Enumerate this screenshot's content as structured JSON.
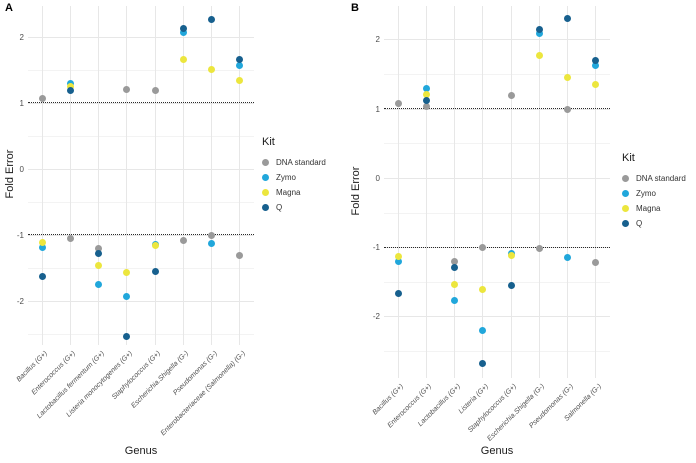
{
  "legend": {
    "title": "Kit",
    "items": [
      {
        "label": "DNA standard",
        "color": "#9a9a9a"
      },
      {
        "label": "Zymo",
        "color": "#21a7db"
      },
      {
        "label": "Magna",
        "color": "#ece63e"
      },
      {
        "label": "Q",
        "color": "#17608e"
      }
    ]
  },
  "chart_data": [
    {
      "type": "scatter",
      "title": "A",
      "xlabel": "Genus",
      "ylabel": "Fold Error",
      "y_ticks": [
        2,
        1,
        0,
        -1,
        -2
      ],
      "ref_lines": [
        1,
        -1
      ],
      "ylim": [
        -2.65,
        2.45
      ],
      "grid": "major-and-minor",
      "legend_position": "right",
      "categories": [
        "Bacillus (G+)",
        "Enterococcus (G+)",
        "Lactobacillus fermentum (G+)",
        "Listeria monocytogenes (G+)",
        "Staphylococcus (G+)",
        "Escherichia.Shigella (G-)",
        "Pseudomonas (G-)",
        "Enterobacteriaceae (Salmonella) (G-)"
      ],
      "series": [
        {
          "name": "DNA standard",
          "color": "#9a9a9a",
          "values": [
            1.08,
            -1.05,
            -1.2,
            1.21,
            1.19,
            -1.08,
            -1.0,
            -1.3
          ]
        },
        {
          "name": "Zymo",
          "color": "#21a7db",
          "values": [
            -1.18,
            1.3,
            -1.74,
            -1.93,
            -1.13,
            2.07,
            -1.12,
            1.58
          ]
        },
        {
          "name": "Magna",
          "color": "#ece63e",
          "values": [
            -1.11,
            1.25,
            -1.45,
            -1.56,
            -1.15,
            1.67,
            1.52,
            1.35
          ]
        },
        {
          "name": "Q",
          "color": "#17608e",
          "values": [
            -1.62,
            1.19,
            -1.27,
            -2.53,
            -1.55,
            2.13,
            2.27,
            1.67
          ]
        }
      ]
    },
    {
      "type": "scatter",
      "title": "B",
      "xlabel": "Genus",
      "ylabel": "Fold Error",
      "y_ticks": [
        2,
        1,
        0,
        -1,
        -2
      ],
      "ref_lines": [
        1,
        -1
      ],
      "ylim": [
        -2.88,
        2.49
      ],
      "grid": "major-and-minor",
      "legend_position": "right",
      "categories": [
        "Bacillus (G+)",
        "Enterococcus (G+)",
        "Lactobacillus (G+)",
        "Listeria (G+)",
        "Staphylococcus (G+)",
        "Escherichia.Shigella (G-)",
        "Pseudomonas (G-)",
        "Salmonella (G-)"
      ],
      "series": [
        {
          "name": "DNA standard",
          "color": "#9a9a9a",
          "values": [
            1.08,
            1.03,
            -1.2,
            -1.0,
            1.2,
            -1.01,
            1.0,
            -1.21
          ]
        },
        {
          "name": "Zymo",
          "color": "#21a7db",
          "values": [
            -1.2,
            1.3,
            -1.76,
            -2.2,
            -1.09,
            2.09,
            -1.14,
            1.63
          ]
        },
        {
          "name": "Magna",
          "color": "#ece63e",
          "values": [
            -1.13,
            1.21,
            -1.53,
            -1.61,
            -1.12,
            1.77,
            1.45,
            1.36
          ]
        },
        {
          "name": "Q",
          "color": "#17608e",
          "values": [
            -1.66,
            1.12,
            -1.28,
            -2.67,
            -1.54,
            2.15,
            2.3,
            1.7
          ]
        }
      ]
    }
  ]
}
